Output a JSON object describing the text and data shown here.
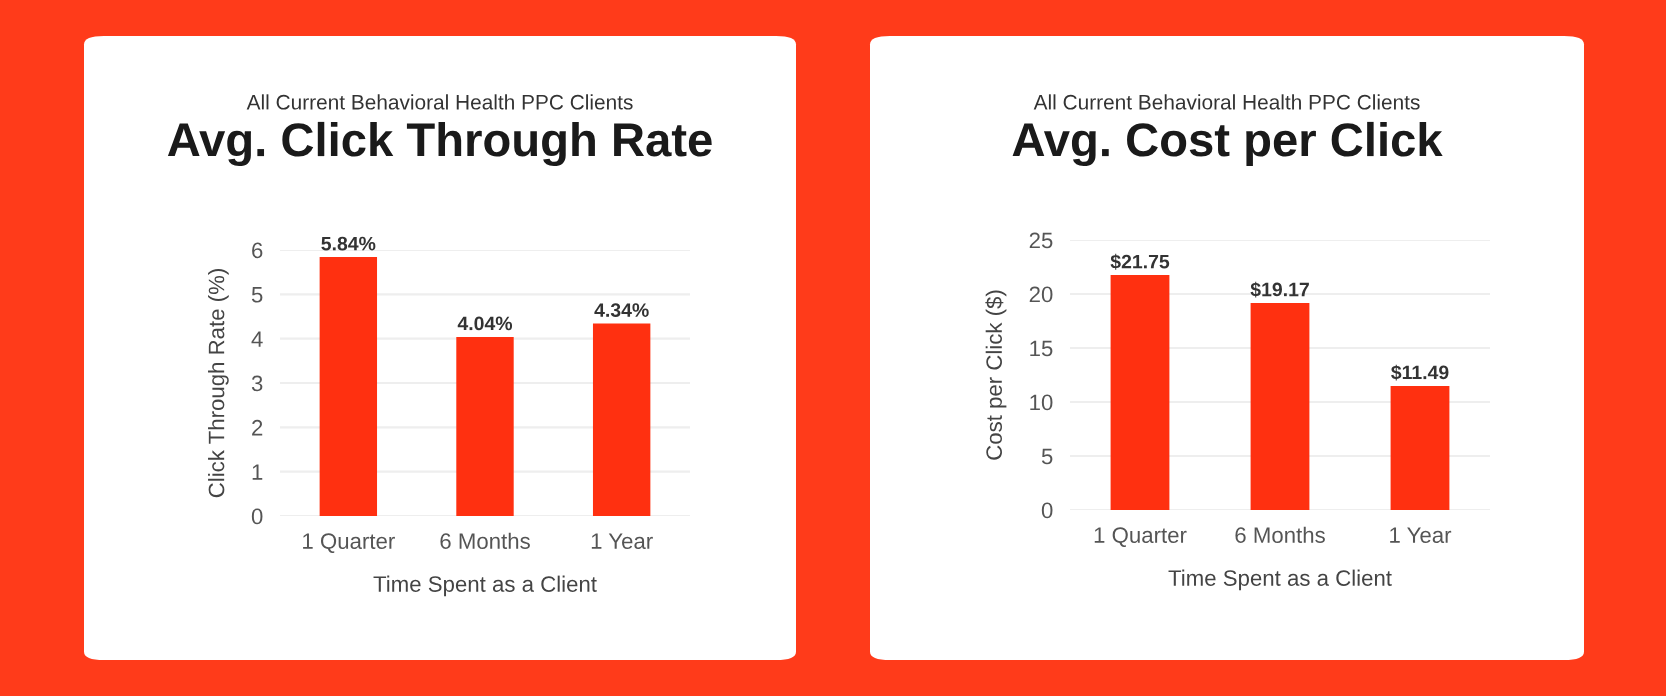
{
  "chart_data": [
    {
      "type": "bar",
      "subtitle": "All Current Behavioral Health PPC Clients",
      "title": "Avg. Click Through Rate",
      "xlabel": "Time Spent as a Client",
      "ylabel": "Click Through Rate (%)",
      "categories": [
        "1 Quarter",
        "6 Months",
        "1 Year"
      ],
      "values": [
        5.84,
        4.04,
        4.34
      ],
      "value_labels": [
        "5.84%",
        "4.04%",
        "4.34%"
      ],
      "color": "#ff3010",
      "ylim": [
        0,
        6
      ],
      "yticks": [
        0,
        1,
        2,
        3,
        4,
        5,
        6
      ],
      "grid": "y"
    },
    {
      "type": "bar",
      "subtitle": "All Current Behavioral Health PPC Clients",
      "title": "Avg. Cost per Click",
      "xlabel": "Time Spent as a Client",
      "ylabel": "Cost per Click ($)",
      "categories": [
        "1 Quarter",
        "6 Months",
        "1 Year"
      ],
      "values": [
        21.75,
        19.17,
        11.49
      ],
      "value_labels": [
        "$21.75",
        "$19.17",
        "$11.49"
      ],
      "color": "#ff3010",
      "ylim": [
        0,
        25
      ],
      "yticks": [
        0,
        5,
        10,
        15,
        20,
        25
      ],
      "grid": "y"
    }
  ]
}
